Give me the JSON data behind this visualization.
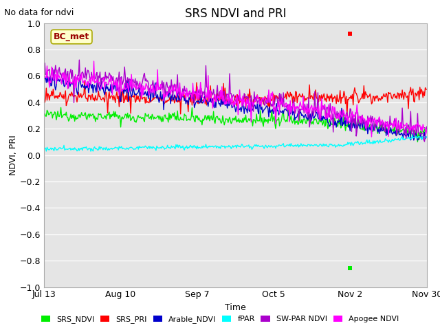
{
  "title": "SRS NDVI and PRI",
  "no_data_text": "No data for ndvi",
  "xlabel": "Time",
  "ylabel": "NDVI, PRI",
  "ylim": [
    -1.0,
    1.0
  ],
  "yticks": [
    -1.0,
    -0.8,
    -0.6,
    -0.4,
    -0.2,
    0.0,
    0.2,
    0.4,
    0.6,
    0.8,
    1.0
  ],
  "xtick_labels": [
    "Jul 13",
    "Aug 10",
    "Sep 7",
    "Oct 5",
    "Nov 2",
    "Nov 30"
  ],
  "xtick_positions": [
    0,
    28,
    56,
    84,
    112,
    140
  ],
  "xlim": [
    0,
    140
  ],
  "annotation_label": "BC_met",
  "annotation_color": "#990000",
  "annotation_bg": "#ffffcc",
  "annotation_edge": "#aaa800",
  "background_color": "#e5e5e5",
  "grid_color": "#ffffff",
  "legend_items": [
    {
      "label": "SRS_NDVI",
      "color": "#00ee00"
    },
    {
      "label": "SRS_PRI",
      "color": "#ff0000"
    },
    {
      "label": "Arable_NDVI",
      "color": "#0000cc"
    },
    {
      "label": "fPAR",
      "color": "#00ffff"
    },
    {
      "label": "SW-PAR NDVI",
      "color": "#aa00cc"
    },
    {
      "label": "Apogee NDVI",
      "color": "#ff00ff"
    }
  ],
  "series_colors": {
    "SRS_NDVI": "#00ee00",
    "SRS_PRI": "#ff0000",
    "Arable_NDVI": "#0000cc",
    "fPAR": "#00ffff",
    "SW_PAR_NDVI": "#aa00cc",
    "Apogee_NDVI": "#ff00ff"
  },
  "srs_pri_outlier": [
    112,
    0.92
  ],
  "srs_ndvi_outlier": [
    112,
    -0.855
  ]
}
